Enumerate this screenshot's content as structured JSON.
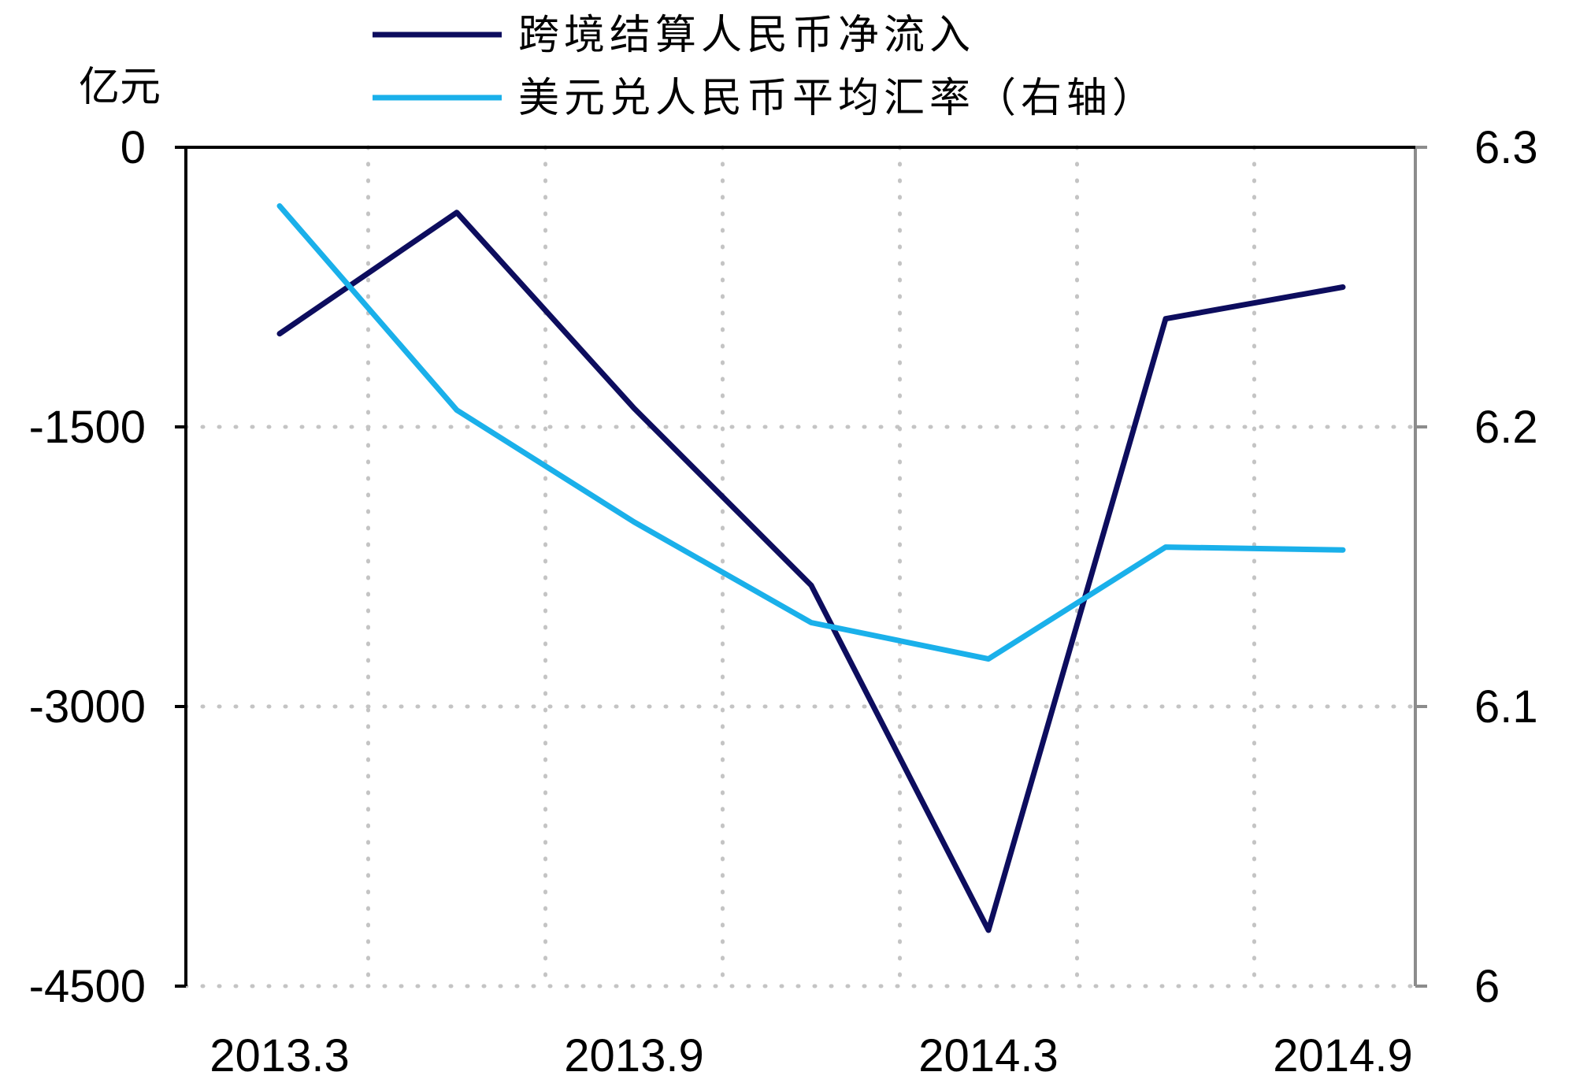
{
  "chart_data": {
    "type": "line",
    "x": [
      "2013.3",
      "2013.6",
      "2013.9",
      "2013.12",
      "2014.3",
      "2014.6",
      "2014.9"
    ],
    "x_tick_labels": [
      "2013.3",
      "2013.9",
      "2014.3",
      "2014.9"
    ],
    "left_axis": {
      "unit": "亿元",
      "ylim": [
        -4500,
        0
      ],
      "ticks": [
        "0",
        "-1500",
        "-3000",
        "-4500"
      ],
      "tick_values": [
        0,
        -1500,
        -3000,
        -4500
      ]
    },
    "right_axis": {
      "ylim": [
        6.0,
        6.3
      ],
      "ticks": [
        "6.3",
        "6.2",
        "6.1",
        "6"
      ],
      "tick_values": [
        6.3,
        6.2,
        6.1,
        6.0
      ]
    },
    "series": [
      {
        "name": "跨境结算人民币净流入",
        "axis": "left",
        "color": "#0d0d5e",
        "values": [
          -1000,
          -350,
          -1400,
          -2350,
          -4200,
          -920,
          -750
        ]
      },
      {
        "name": "美元兑人民币平均汇率（右轴）",
        "axis": "right",
        "color": "#1ab0ea",
        "values": [
          6.279,
          6.206,
          6.166,
          6.13,
          6.117,
          6.157,
          6.156
        ]
      }
    ],
    "grid": "dotted",
    "legend_position": "top"
  }
}
